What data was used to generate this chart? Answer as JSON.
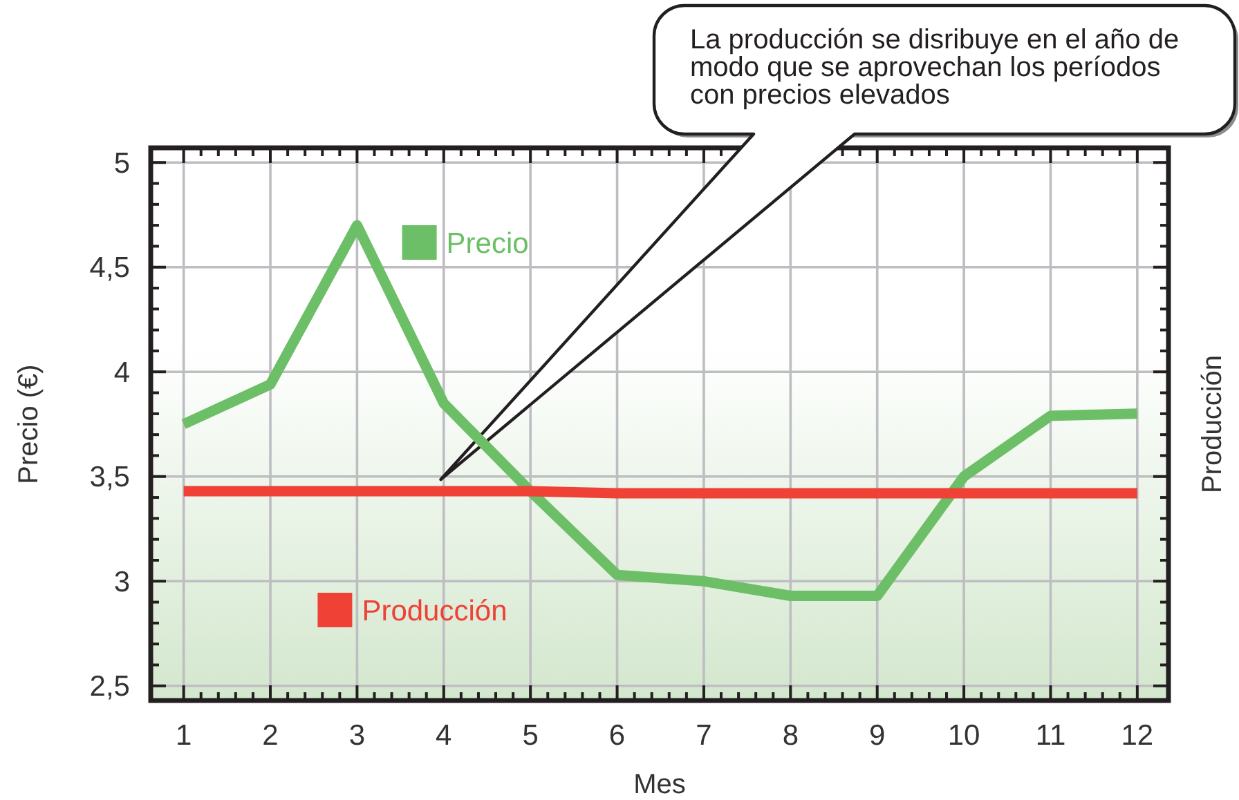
{
  "chart_data": {
    "type": "line",
    "xlabel": "Mes",
    "ylabel": "Precio (€)",
    "y2label": "Producción",
    "x": [
      1,
      2,
      3,
      4,
      5,
      6,
      7,
      8,
      9,
      10,
      11,
      12
    ],
    "xlim": [
      0.62,
      12.36
    ],
    "xticks": [
      1,
      {
        "value": 1.2,
        "label": null
      },
      {
        "value": 1.4,
        "label": null
      },
      {
        "value": 1.6,
        "label": null
      },
      {
        "value": 1.8,
        "label": null
      },
      2,
      {
        "value": 2.2,
        "label": null
      },
      {
        "value": 2.4,
        "label": null
      },
      {
        "value": 2.6,
        "label": null
      },
      {
        "value": 2.8,
        "label": null
      },
      3,
      {
        "value": 3.2,
        "label": null
      },
      {
        "value": 3.4,
        "label": null
      },
      {
        "value": 3.6,
        "label": null
      },
      {
        "value": 3.8,
        "label": null
      },
      4,
      {
        "value": 4.2,
        "label": null
      },
      {
        "value": 4.4,
        "label": null
      },
      {
        "value": 4.6,
        "label": null
      },
      {
        "value": 4.8,
        "label": null
      },
      5,
      {
        "value": 5.2,
        "label": null
      },
      {
        "value": 5.4,
        "label": null
      },
      {
        "value": 5.6,
        "label": null
      },
      {
        "value": 5.8,
        "label": null
      },
      6,
      {
        "value": 6.2,
        "label": null
      },
      {
        "value": 6.4,
        "label": null
      },
      {
        "value": 6.6,
        "label": null
      },
      {
        "value": 6.8,
        "label": null
      },
      7,
      {
        "value": 7.2,
        "label": null
      },
      {
        "value": 7.4,
        "label": null
      },
      {
        "value": 7.6,
        "label": null
      },
      {
        "value": 7.8,
        "label": null
      },
      8,
      {
        "value": 8.2,
        "label": null
      },
      {
        "value": 8.4,
        "label": null
      },
      {
        "value": 8.6,
        "label": null
      },
      {
        "value": 8.8,
        "label": null
      },
      9,
      {
        "value": 9.2,
        "label": null
      },
      {
        "value": 9.4,
        "label": null
      },
      {
        "value": 9.6,
        "label": null
      },
      {
        "value": 9.8,
        "label": null
      },
      10,
      {
        "value": 10.2,
        "label": null
      },
      {
        "value": 10.4,
        "label": null
      },
      {
        "value": 10.6,
        "label": null
      },
      {
        "value": 10.8,
        "label": null
      },
      11,
      {
        "value": 11.2,
        "label": null
      },
      {
        "value": 11.4,
        "label": null
      },
      {
        "value": 11.6,
        "label": null
      },
      {
        "value": 11.8,
        "label": null
      },
      12
    ],
    "ylim": [
      2.43,
      5.07
    ],
    "yticks": [
      {
        "value": 2.5,
        "label": "2,5"
      },
      {
        "value": 2.6,
        "label": null
      },
      {
        "value": 2.7,
        "label": null
      },
      {
        "value": 2.8,
        "label": null
      },
      {
        "value": 2.9,
        "label": null
      },
      3,
      {
        "value": 3.1,
        "label": null
      },
      {
        "value": 3.2,
        "label": null
      },
      {
        "value": 3.3,
        "label": null
      },
      {
        "value": 3.4,
        "label": null
      },
      {
        "value": 3.5,
        "label": "3,5"
      },
      {
        "value": 3.6,
        "label": null
      },
      {
        "value": 3.7,
        "label": null
      },
      {
        "value": 3.8,
        "label": null
      },
      {
        "value": 3.9,
        "label": null
      },
      4,
      {
        "value": 4.1,
        "label": null
      },
      {
        "value": 4.2,
        "label": null
      },
      {
        "value": 4.3,
        "label": null
      },
      {
        "value": 4.4,
        "label": null
      },
      {
        "value": 4.5,
        "label": "4,5"
      },
      {
        "value": 4.6,
        "label": null
      },
      {
        "value": 4.7,
        "label": null
      },
      {
        "value": 4.8,
        "label": null
      },
      {
        "value": 4.9,
        "label": null
      },
      5
    ],
    "series": [
      {
        "name": "Precio",
        "color": "#6dbf67",
        "values": [
          3.75,
          3.94,
          4.7,
          3.85,
          3.43,
          3.03,
          3.0,
          2.93,
          2.93,
          3.5,
          3.79,
          3.8
        ]
      },
      {
        "name": "Producción",
        "color": "#ef4136",
        "values": [
          3.43,
          3.43,
          3.43,
          3.43,
          3.43,
          3.42,
          3.42,
          3.42,
          3.42,
          3.42,
          3.42,
          3.42
        ]
      }
    ],
    "grid": true,
    "legend": "left",
    "annotations": [
      "La producción se disribuye en el año de modo que se aprovechan los períodos con precios elevados"
    ]
  }
}
